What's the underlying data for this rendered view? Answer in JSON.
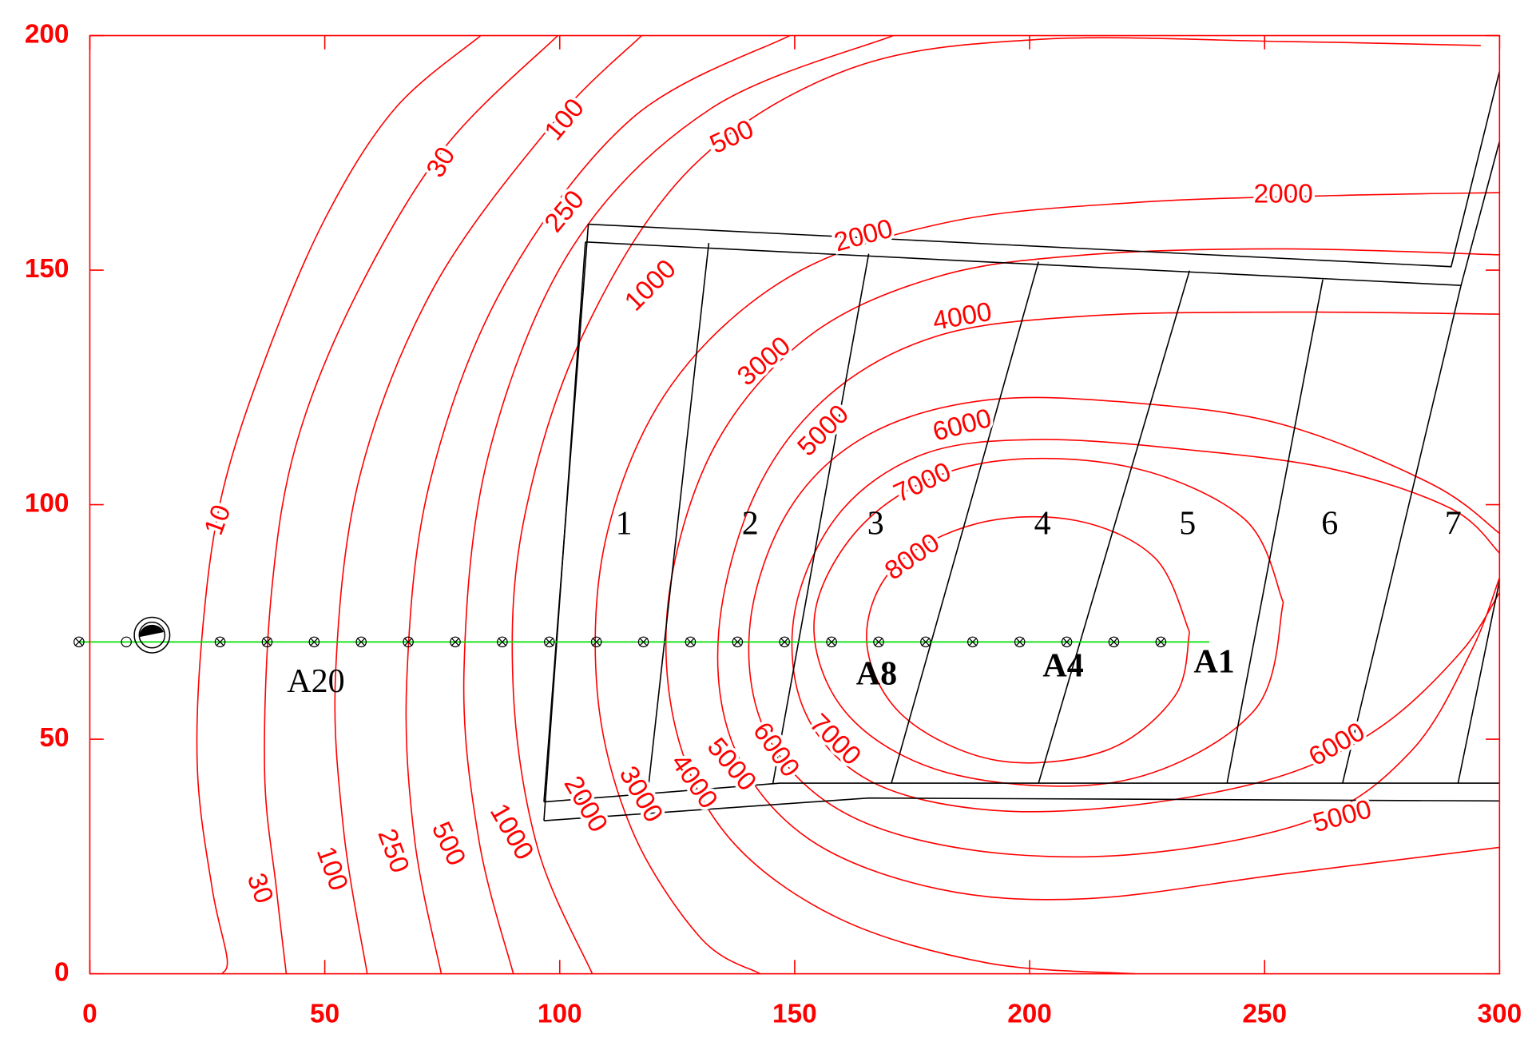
{
  "chart_data": {
    "type": "contour",
    "color": "#ff0000",
    "xlim": [
      0,
      300
    ],
    "ylim": [
      0,
      200
    ],
    "xticks": [
      0,
      50,
      100,
      150,
      200,
      250,
      300
    ],
    "yticks": [
      0,
      50,
      100,
      150,
      200
    ],
    "contours": [
      {
        "level": 10
      },
      {
        "level": 30
      },
      {
        "level": 100
      },
      {
        "level": 250
      },
      {
        "level": 500
      },
      {
        "level": 1000
      },
      {
        "level": 2000
      },
      {
        "level": 3000
      },
      {
        "level": 4000
      },
      {
        "level": 5000
      },
      {
        "level": 6000
      },
      {
        "level": 7000
      },
      {
        "level": 8000
      }
    ],
    "zones": [
      "1",
      "2",
      "3",
      "4",
      "5",
      "6",
      "7"
    ],
    "wells": [
      "A20",
      "A8",
      "A4",
      "A1"
    ]
  }
}
